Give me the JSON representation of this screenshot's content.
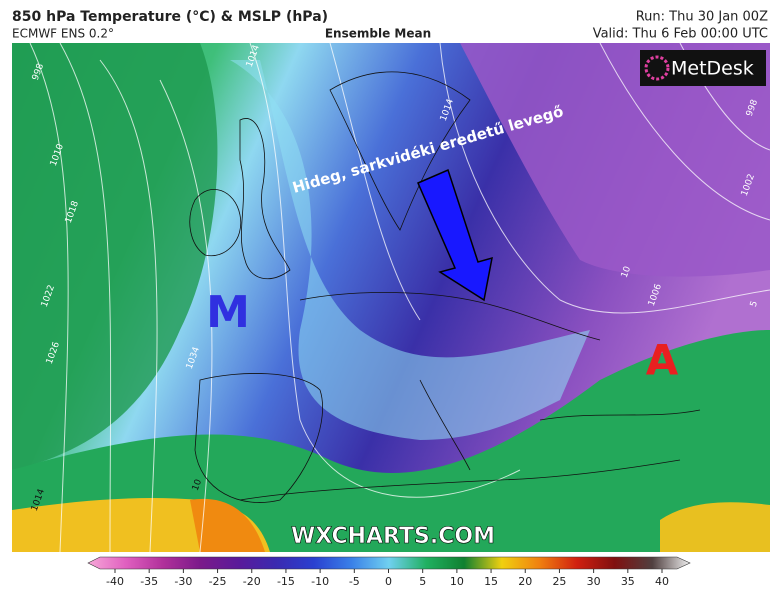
{
  "header": {
    "title": "850 hPa Temperature (°C) & MSLP (hPa)",
    "model": "ECMWF ENS 0.2°",
    "product": "Ensemble Mean",
    "run": "Run: Thu 30 Jan 00Z",
    "valid": "Valid: Thu 6 Feb 00:00 UTC"
  },
  "map": {
    "logo": "MetDesk",
    "watermark": "WXCHARTS.COM",
    "annotation": "Hideg, sarkvidéki eredetű levegő",
    "low_label": "M",
    "high_label": "A",
    "isobar_labels": [
      "998",
      "1014",
      "1010",
      "1018",
      "1022",
      "1026",
      "1034",
      "1014",
      "998",
      "1002",
      "1006",
      "10",
      "5",
      "1014",
      "10"
    ]
  },
  "colorbar": {
    "ticks": [
      -40,
      -35,
      -30,
      -25,
      -20,
      -15,
      -10,
      -5,
      0,
      5,
      10,
      15,
      20,
      25,
      30,
      35,
      40
    ],
    "colors": [
      "#f7a8d8",
      "#e060c0",
      "#b0309a",
      "#7a1a8a",
      "#5a1a9a",
      "#3a2ab0",
      "#2a40d0",
      "#3a80e8",
      "#70d0f0",
      "#20b060",
      "#108030",
      "#f0d010",
      "#f08010",
      "#d02010",
      "#801010",
      "#504040",
      "#f0f0f0"
    ]
  }
}
